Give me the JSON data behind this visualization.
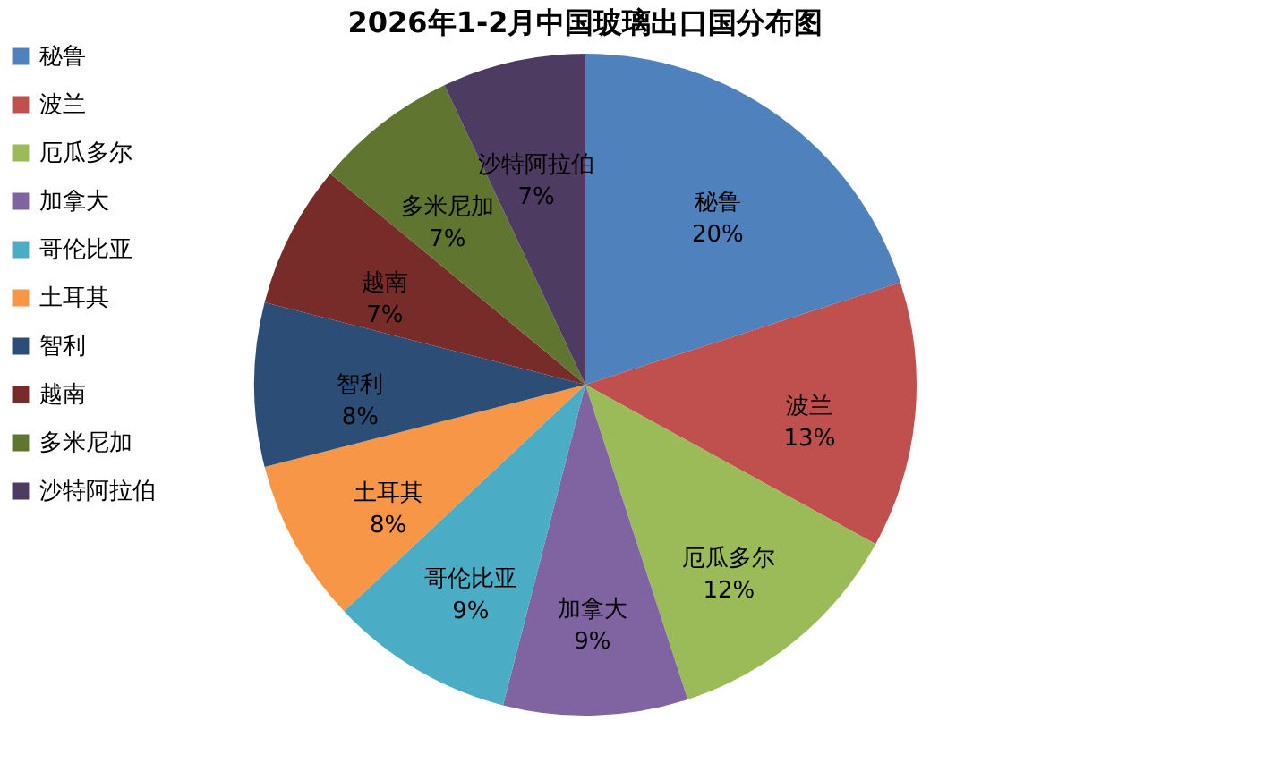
{
  "chart_data": {
    "type": "pie",
    "title": "2026年1-2月中国玻璃出口国分布图",
    "categories": [
      "秘鲁",
      "波兰",
      "厄瓜多尔",
      "加拿大",
      "哥伦比亚",
      "土耳其",
      "智利",
      "越南",
      "多米尼加",
      "沙特阿拉伯"
    ],
    "values": [
      20,
      13,
      12,
      9,
      9,
      8,
      8,
      7,
      7,
      7
    ],
    "value_labels": [
      "20%",
      "13%",
      "12%",
      "9%",
      "9%",
      "8%",
      "8%",
      "7%",
      "7%",
      "7%"
    ],
    "colors": [
      "#4f81bd",
      "#c0504d",
      "#9bbb59",
      "#8064a2",
      "#4bacc6",
      "#f79646",
      "#2c4d75",
      "#772c2a",
      "#5f7530",
      "#4d3b62"
    ],
    "legend": "left"
  }
}
